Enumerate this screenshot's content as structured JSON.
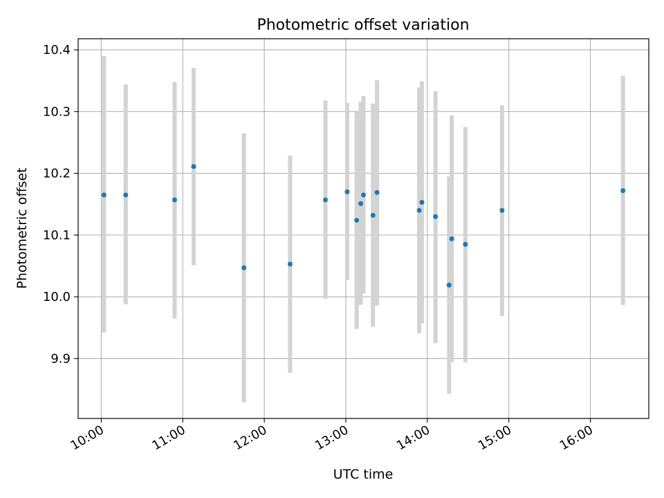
{
  "chart_data": {
    "type": "scatter",
    "title": "Photometric offset variation",
    "xlabel": "UTC time",
    "ylabel": "Photometric offset",
    "x_ticks": [
      "10:00",
      "11:00",
      "12:00",
      "13:00",
      "14:00",
      "15:00",
      "16:00"
    ],
    "y_ticks": [
      "9.9",
      "10.0",
      "10.1",
      "10.2",
      "10.3",
      "10.4"
    ],
    "xlim": [
      "09:43",
      "16:43"
    ],
    "ylim": [
      9.803,
      10.418
    ],
    "grid": true,
    "colors": {
      "point": "#1f77b4",
      "errorbar": "#d3d3d3",
      "grid": "#b0b0b0"
    },
    "points": [
      {
        "time": "10:02",
        "y": 10.165,
        "low": 9.942,
        "high": 10.39
      },
      {
        "time": "10:18",
        "y": 10.165,
        "low": 9.988,
        "high": 10.344
      },
      {
        "time": "10:54",
        "y": 10.157,
        "low": 9.965,
        "high": 10.348
      },
      {
        "time": "11:08",
        "y": 10.211,
        "low": 10.051,
        "high": 10.371
      },
      {
        "time": "11:45",
        "y": 10.047,
        "low": 9.829,
        "high": 10.265
      },
      {
        "time": "12:19",
        "y": 10.053,
        "low": 9.877,
        "high": 10.229
      },
      {
        "time": "12:45",
        "y": 10.157,
        "low": 9.997,
        "high": 10.318
      },
      {
        "time": "13:01",
        "y": 10.17,
        "low": 10.027,
        "high": 10.314
      },
      {
        "time": "13:08",
        "y": 10.124,
        "low": 9.948,
        "high": 10.3
      },
      {
        "time": "13:11",
        "y": 10.151,
        "low": 9.987,
        "high": 10.316
      },
      {
        "time": "13:13",
        "y": 10.165,
        "low": 10.005,
        "high": 10.325
      },
      {
        "time": "13:20",
        "y": 10.132,
        "low": 9.951,
        "high": 10.313
      },
      {
        "time": "13:23",
        "y": 10.169,
        "low": 9.986,
        "high": 10.351
      },
      {
        "time": "13:54",
        "y": 10.14,
        "low": 9.941,
        "high": 10.339
      },
      {
        "time": "13:56",
        "y": 10.153,
        "low": 9.957,
        "high": 10.349
      },
      {
        "time": "14:06",
        "y": 10.13,
        "low": 9.925,
        "high": 10.333
      },
      {
        "time": "14:16",
        "y": 10.019,
        "low": 9.843,
        "high": 10.195
      },
      {
        "time": "14:18",
        "y": 10.094,
        "low": 9.894,
        "high": 10.294
      },
      {
        "time": "14:28",
        "y": 10.085,
        "low": 9.894,
        "high": 10.275
      },
      {
        "time": "14:55",
        "y": 10.14,
        "low": 9.969,
        "high": 10.31
      },
      {
        "time": "16:24",
        "y": 10.172,
        "low": 9.987,
        "high": 10.358
      }
    ]
  }
}
